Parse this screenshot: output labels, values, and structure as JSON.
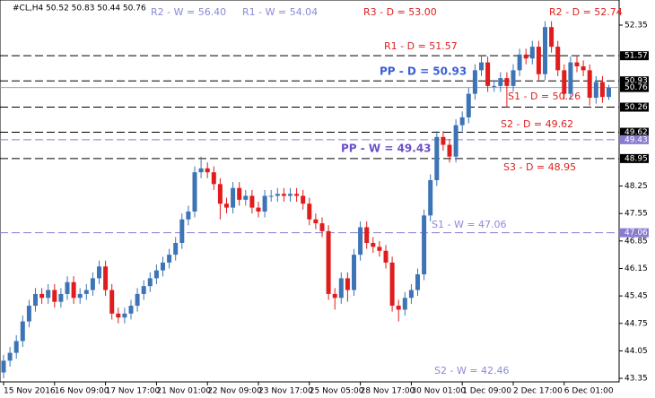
{
  "chart_data": {
    "type": "candlestick",
    "title": "#CL,H4  50.52 50.83 50.44 50.76",
    "ylim": [
      43.26,
      52.99
    ],
    "yticks": [
      52.35,
      48.25,
      47.55,
      46.85,
      46.15,
      45.45,
      44.75,
      44.05,
      43.35
    ],
    "up_color": "#3d74b5",
    "down_color": "#e01c1c",
    "x_labels": [
      "15 Nov 2016",
      "16 Nov 09:00",
      "17 Nov 17:00",
      "21 Nov 01:00",
      "22 Nov 09:00",
      "23 Nov 17:00",
      "25 Nov 05:00",
      "28 Nov 17:00",
      "30 Nov 01:00",
      "1 Dec 09:00",
      "2 Dec 17:00",
      "6 Dec 01:00"
    ],
    "open": [
      43.5,
      43.8,
      44.0,
      44.3,
      44.8,
      45.2,
      45.5,
      45.4,
      45.6,
      45.3,
      45.5,
      45.8,
      45.4,
      45.5,
      45.6,
      45.9,
      46.2,
      45.6,
      45.0,
      44.9,
      45.0,
      45.2,
      45.5,
      45.7,
      45.9,
      46.1,
      46.3,
      46.5,
      46.8,
      47.4,
      47.6,
      48.6,
      48.7,
      48.6,
      48.3,
      47.8,
      47.7,
      48.2,
      47.9,
      48.0,
      47.7,
      47.6,
      48.0,
      48.0,
      48.05,
      48.0,
      48.05,
      48.0,
      47.8,
      47.4,
      47.3,
      47.1,
      45.5,
      45.4,
      45.9,
      45.6,
      46.5,
      47.2,
      46.8,
      46.7,
      46.6,
      46.3,
      45.2,
      45.1,
      45.4,
      45.6,
      46.0,
      47.5,
      48.4,
      49.5,
      49.3,
      49.0,
      49.8,
      50.0,
      50.6,
      51.2,
      51.4,
      50.8,
      50.8,
      51.0,
      50.8,
      51.2,
      51.6,
      51.5,
      51.8,
      51.1,
      52.3,
      51.8,
      51.2,
      50.6,
      51.4,
      51.3,
      51.2,
      50.5,
      50.9,
      50.52
    ],
    "high": [
      43.95,
      44.15,
      44.45,
      44.95,
      45.35,
      45.65,
      45.65,
      45.75,
      45.75,
      45.65,
      45.95,
      45.95,
      45.65,
      45.75,
      46.05,
      46.35,
      46.35,
      45.75,
      45.15,
      45.15,
      45.35,
      45.65,
      45.85,
      46.05,
      46.25,
      46.45,
      46.65,
      46.95,
      47.55,
      47.75,
      48.75,
      49.0,
      48.85,
      48.75,
      48.45,
      47.95,
      48.35,
      48.35,
      48.15,
      48.15,
      47.85,
      48.15,
      48.15,
      48.2,
      48.2,
      48.2,
      48.2,
      48.15,
      47.95,
      47.55,
      47.45,
      47.25,
      45.65,
      46.05,
      46.05,
      46.65,
      47.35,
      47.35,
      46.95,
      46.85,
      46.75,
      46.45,
      45.35,
      45.55,
      45.75,
      46.15,
      47.65,
      48.55,
      49.65,
      49.65,
      49.45,
      49.95,
      50.15,
      50.75,
      51.35,
      51.55,
      51.55,
      50.95,
      51.15,
      51.15,
      51.35,
      51.75,
      51.75,
      51.95,
      51.95,
      52.45,
      52.45,
      51.95,
      51.35,
      51.55,
      51.55,
      51.45,
      51.35,
      51.05,
      51.05,
      50.83
    ],
    "low": [
      43.35,
      43.65,
      43.85,
      44.15,
      44.65,
      45.05,
      45.25,
      45.25,
      45.15,
      45.15,
      45.35,
      45.25,
      45.25,
      45.35,
      45.45,
      45.75,
      45.45,
      44.85,
      44.75,
      44.75,
      44.85,
      45.05,
      45.35,
      45.55,
      45.75,
      45.95,
      46.15,
      46.35,
      46.65,
      47.25,
      47.45,
      48.45,
      48.45,
      48.15,
      47.4,
      47.55,
      47.55,
      47.75,
      47.75,
      47.55,
      47.45,
      47.45,
      47.85,
      47.85,
      47.85,
      47.85,
      47.85,
      47.65,
      47.25,
      47.15,
      46.95,
      45.35,
      45.1,
      45.25,
      45.3,
      45.45,
      46.35,
      46.65,
      46.55,
      46.45,
      46.15,
      45.05,
      44.8,
      44.95,
      45.25,
      45.45,
      45.85,
      47.35,
      48.25,
      49.15,
      48.85,
      48.85,
      49.65,
      49.85,
      50.45,
      51.05,
      50.65,
      50.65,
      50.65,
      50.25,
      50.65,
      51.05,
      51.35,
      51.35,
      50.95,
      50.95,
      51.65,
      51.05,
      50.45,
      50.45,
      51.15,
      51.05,
      50.3,
      50.35,
      50.37,
      50.44
    ],
    "close": [
      43.8,
      44.0,
      44.3,
      44.8,
      45.2,
      45.5,
      45.4,
      45.6,
      45.3,
      45.5,
      45.8,
      45.4,
      45.5,
      45.6,
      45.9,
      46.2,
      45.6,
      45.0,
      44.9,
      45.0,
      45.2,
      45.5,
      45.7,
      45.9,
      46.1,
      46.3,
      46.5,
      46.8,
      47.4,
      47.6,
      48.6,
      48.7,
      48.6,
      48.3,
      47.8,
      47.7,
      48.2,
      47.9,
      48.0,
      47.7,
      47.6,
      48.0,
      48.0,
      48.05,
      48.0,
      48.05,
      48.0,
      47.8,
      47.4,
      47.3,
      47.1,
      45.5,
      45.4,
      45.9,
      45.6,
      46.5,
      47.2,
      46.8,
      46.7,
      46.6,
      46.3,
      45.2,
      45.1,
      45.4,
      45.6,
      46.0,
      47.5,
      48.4,
      49.5,
      49.3,
      49.0,
      49.8,
      50.0,
      50.6,
      51.2,
      51.4,
      50.8,
      50.8,
      51.0,
      50.8,
      51.2,
      51.6,
      51.5,
      51.8,
      51.1,
      52.3,
      51.8,
      51.2,
      50.6,
      51.4,
      51.3,
      51.2,
      50.5,
      50.9,
      50.52,
      50.76
    ],
    "levels": [
      {
        "label": "R2 - W = 56.40",
        "value": 56.4,
        "color": "#8a8ad6",
        "line": false,
        "bold": false
      },
      {
        "label": "R1 - W = 54.04",
        "value": 54.04,
        "color": "#8a8ad6",
        "line": false,
        "bold": false
      },
      {
        "label": "R3 - D = 53.00",
        "value": 53.0,
        "color": "#e02020",
        "line": false,
        "bold": false
      },
      {
        "label": "R2 - D = 52.74",
        "value": 52.74,
        "color": "#e02020",
        "line": false,
        "bold": false
      },
      {
        "label": "R1 - D = 51.57",
        "value": 51.57,
        "color": "#e02020",
        "line": true,
        "line_color": "#000",
        "bold": false
      },
      {
        "label": "PP - D = 50.93",
        "value": 50.93,
        "color": "#3b5fd6",
        "line": true,
        "line_color": "#000",
        "bold": true
      },
      {
        "label": "S1 - D = 50.26",
        "value": 50.26,
        "color": "#e02020",
        "line": true,
        "line_color": "#000",
        "bold": false
      },
      {
        "label": "S2 - D = 49.62",
        "value": 49.62,
        "color": "#e02020",
        "line": true,
        "line_color": "#000",
        "bold": false
      },
      {
        "label": "PP - W = 49.43",
        "value": 49.43,
        "color": "#6a50c8",
        "line": true,
        "line_color": "#8a7ad0",
        "bold": true
      },
      {
        "label": "S3 - D = 48.95",
        "value": 48.95,
        "color": "#e02020",
        "line": true,
        "line_color": "#000",
        "bold": false
      },
      {
        "label": "S1 - W = 47.06",
        "value": 47.06,
        "color": "#8a8ad6",
        "line": true,
        "line_color": "#8a7ad0",
        "bold": false
      },
      {
        "label": "S2 - W = 42.46",
        "value": 42.46,
        "color": "#8a8ad6",
        "line": false,
        "bold": false
      }
    ],
    "price_line": {
      "value": 50.76,
      "color": "#a0a0a0"
    },
    "price_labels": [
      {
        "value": 51.57,
        "color": "#000"
      },
      {
        "value": 50.93,
        "color": "#000"
      },
      {
        "value": 50.76,
        "color": "#000"
      },
      {
        "value": 50.26,
        "color": "#000"
      },
      {
        "value": 49.62,
        "color": "#000"
      },
      {
        "value": 49.43,
        "color": "#8a7ad0"
      },
      {
        "value": 48.95,
        "color": "#000"
      },
      {
        "value": 47.06,
        "color": "#8a7ad0"
      }
    ]
  }
}
